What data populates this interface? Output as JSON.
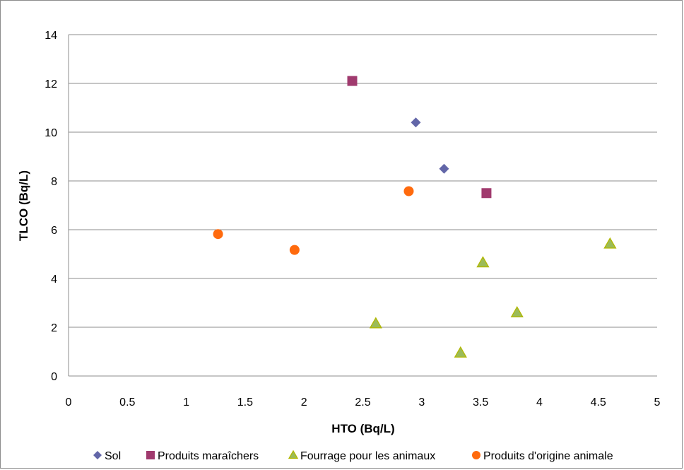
{
  "chart_data": {
    "type": "scatter",
    "xlabel": "HTO (Bq/L)",
    "ylabel": "TLCO (Bq/L)",
    "xlim": [
      0,
      5
    ],
    "ylim": [
      0,
      14
    ],
    "x_ticks": [
      "0",
      "0.5",
      "1",
      "1.5",
      "2",
      "2.5",
      "3",
      "3.5",
      "4",
      "4.5",
      "5"
    ],
    "y_ticks": [
      "0",
      "2",
      "4",
      "6",
      "8",
      "10",
      "12",
      "14"
    ],
    "grid": "horizontal",
    "legend_position": "bottom",
    "series": [
      {
        "name": "Sol",
        "marker": "diamond",
        "color": "#6266A8",
        "points": [
          [
            2.95,
            10.4
          ],
          [
            3.19,
            8.5
          ]
        ]
      },
      {
        "name": "Produits maraîchers",
        "marker": "square",
        "color": "#A03A6E",
        "points": [
          [
            2.41,
            12.1
          ],
          [
            3.55,
            7.5
          ]
        ]
      },
      {
        "name": "Fourrage pour les animaux",
        "marker": "triangle",
        "color": "#9BBB59",
        "stroke": "#B9C000",
        "points": [
          [
            2.61,
            2.15
          ],
          [
            3.33,
            0.95
          ],
          [
            3.52,
            4.65
          ],
          [
            3.81,
            2.6
          ],
          [
            4.6,
            5.42
          ]
        ]
      },
      {
        "name": "Produits d'origine animale",
        "marker": "circle",
        "color": "#FF6A0D",
        "points": [
          [
            1.27,
            5.82
          ],
          [
            1.92,
            5.17
          ],
          [
            2.89,
            7.58
          ]
        ]
      }
    ]
  }
}
